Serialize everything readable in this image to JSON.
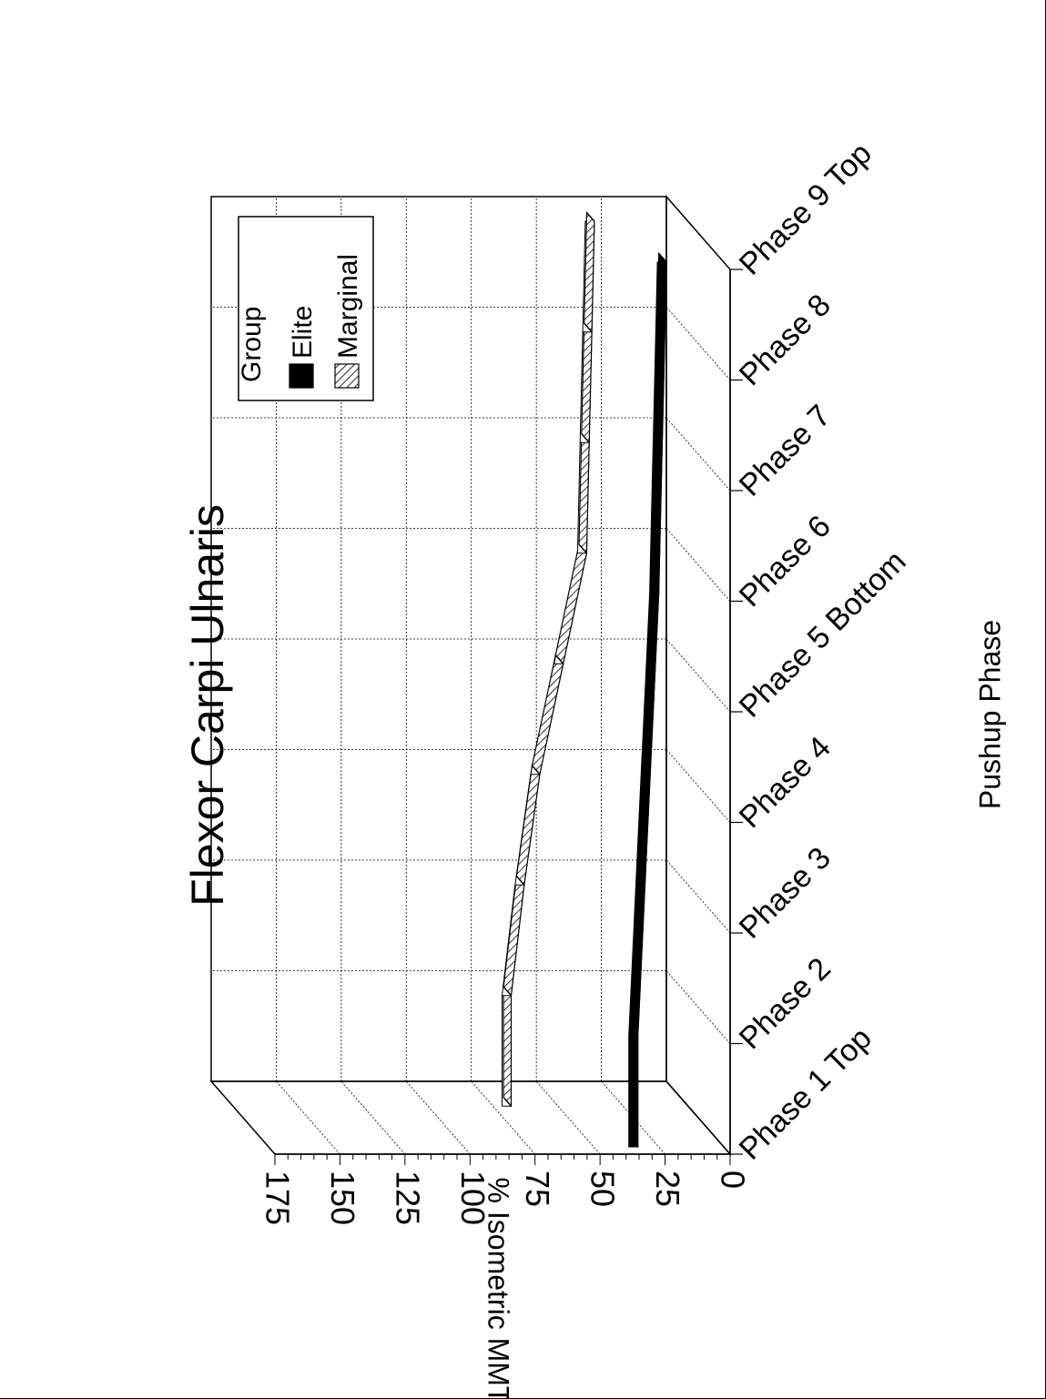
{
  "chart_data": {
    "type": "line",
    "title": "Flexor Carpi Ulnaris",
    "xlabel": "Pushup Phase",
    "ylabel": "% Isometric MMT",
    "ylim": [
      0,
      175
    ],
    "yticks": [
      "0",
      "25",
      "50",
      "75",
      "100",
      "125",
      "150",
      "175"
    ],
    "categories": [
      "Phase 1 Top",
      "Phase 2",
      "Phase 3",
      "Phase 4",
      "Phase 5 Bottom",
      "Phase 6",
      "Phase 7",
      "Phase 8",
      "Phase 9 Top"
    ],
    "legend": {
      "title": "Group",
      "placement": "top-right"
    },
    "series": [
      {
        "name": "Elite",
        "values": [
          33,
          33,
          31,
          29,
          27,
          25,
          24,
          23,
          22
        ],
        "color": "#000000",
        "fill": "solid"
      },
      {
        "name": "Marginal",
        "values": [
          68,
          68,
          63,
          57,
          48,
          39,
          38,
          37,
          36
        ],
        "color": "#000000",
        "fill": "hatched"
      }
    ],
    "grid": true,
    "three_d": true,
    "orientation": "rotated-90-clockwise"
  }
}
